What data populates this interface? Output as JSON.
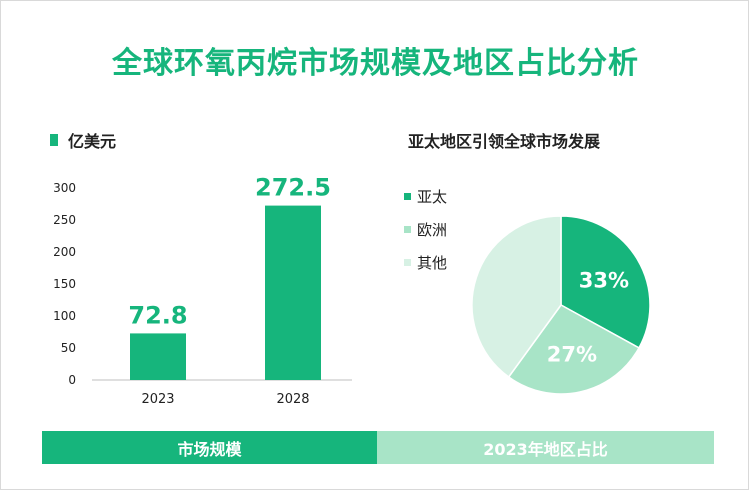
{
  "title": "全球环氧丙烷市场规模及地区占比分析",
  "colors": {
    "accent": "#16b57c",
    "mid": "#a8e4c7",
    "light": "#d7f1e4",
    "footer_right": "#a8e4c7"
  },
  "bar_legend": "亿美元",
  "pie_title": "亚太地区引领全球市场发展",
  "footer": {
    "left": "市场规模",
    "right": "2023年地区占比"
  },
  "chart_data": [
    {
      "type": "bar",
      "categories": [
        "2023",
        "2028"
      ],
      "values": [
        72.8,
        272.5
      ],
      "value_labels": [
        "72.8",
        "272.5"
      ],
      "legend": "亿美元",
      "ylim": [
        0,
        300
      ],
      "yticks": [
        "0",
        "50",
        "100",
        "150",
        "200",
        "250",
        "300"
      ],
      "grid": false
    },
    {
      "type": "pie",
      "title": "亚太地区引领全球市场发展",
      "labels": [
        "亚太",
        "欧洲",
        "其他"
      ],
      "values": [
        33,
        27,
        40
      ],
      "value_labels": [
        "33%",
        "27%",
        ""
      ],
      "colors": [
        "#16b57c",
        "#a8e4c7",
        "#d7f1e4"
      ],
      "legend": "left"
    }
  ]
}
